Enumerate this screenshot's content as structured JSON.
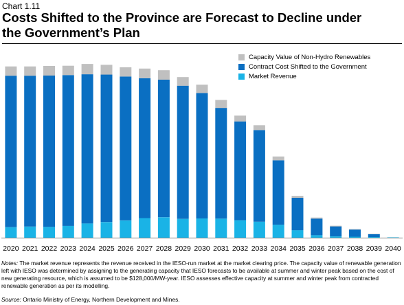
{
  "header": {
    "chart_number": "Chart 1.11",
    "title_line1": "Costs Shifted to the Province are Forecast to Decline under",
    "title_line2": "the Government’s Plan"
  },
  "notes": {
    "label": "Notes:",
    "text": " The market revenue represents the revenue received in the IESO-run  market at the market clearing price. The capacity value of renewable generation left with IESO  was determined by assigning to the generating capacity that IESO  forecasts to be available at summer and winter peak based on the cost of new generating resource, which is assumed to be $128,000/MW-year. IESO assesses effective capacity at summer and winter peak from contracted renewable generation as per its modelling.",
    "source_label": "Source:",
    "source_text": " Ontario Ministry of Energy, Northern Development and Mines."
  },
  "colors": {
    "capacity": "#c0c0c0",
    "contract": "#0a6fc2",
    "market": "#1ab3e6"
  },
  "chart_data": {
    "type": "bar",
    "stacked": true,
    "categories": [
      "2020",
      "2021",
      "2022",
      "2023",
      "2024",
      "2025",
      "2026",
      "2027",
      "2028",
      "2029",
      "2030",
      "2031",
      "2032",
      "2033",
      "2034",
      "2035",
      "2036",
      "2037",
      "2038",
      "2039",
      "2040"
    ],
    "series": [
      {
        "name": "Market Revenue",
        "values": [
          6.3,
          6.7,
          6.5,
          7.1,
          8.6,
          9.4,
          10.4,
          11.8,
          12.3,
          11.3,
          11.6,
          11.5,
          10.5,
          9.6,
          7.8,
          4.5,
          1.5,
          0.8,
          0.6,
          0.4,
          0.2
        ]
      },
      {
        "name": "Contract Cost Shifted to the Government",
        "values": [
          91.2,
          90.8,
          91.1,
          90.8,
          89.8,
          88.8,
          86.6,
          84.2,
          82.8,
          80.2,
          75.5,
          66.6,
          59.5,
          55.2,
          38.8,
          19.5,
          10.0,
          6.0,
          4.3,
          1.7,
          0.0
        ]
      },
      {
        "name": "Capacity Value of Non-Hydro Renewables",
        "values": [
          5.6,
          5.6,
          5.8,
          5.6,
          6.2,
          5.9,
          5.6,
          5.8,
          5.7,
          5.2,
          5.0,
          4.8,
          3.5,
          2.9,
          2.3,
          1.2,
          0.6,
          0.4,
          0.3,
          0.2,
          0.0
        ]
      }
    ],
    "ylim": [
      0,
      110
    ],
    "grid": false,
    "legend_position": "top-right"
  }
}
